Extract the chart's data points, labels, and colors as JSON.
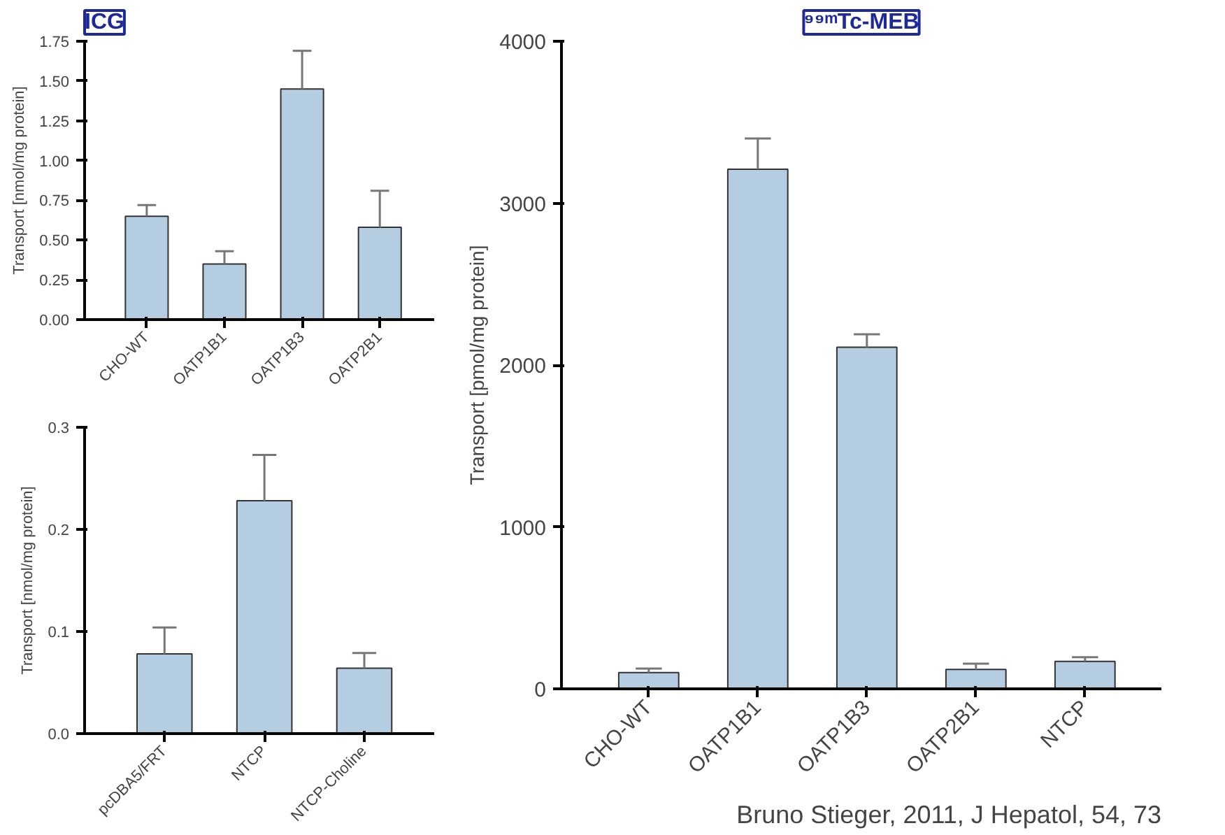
{
  "chart_data": [
    {
      "type": "bar",
      "title": "ICG",
      "ylabel": "Transport [nmol/mg protein]",
      "categories": [
        "CHO-WT",
        "OATP1B1",
        "OATP1B3",
        "OATP2B1"
      ],
      "values": [
        0.65,
        0.35,
        1.45,
        0.58
      ],
      "errors": [
        [
          0.65,
          0.72
        ],
        [
          0.35,
          0.43
        ],
        [
          1.45,
          1.69
        ],
        [
          0.58,
          0.81
        ]
      ],
      "color": "#b4cde0",
      "ylim": [
        0,
        1.75
      ],
      "yticks": [
        {
          "value": 0,
          "label": "0.00"
        },
        {
          "value": 0.25,
          "label": "0.25"
        },
        {
          "value": 0.5,
          "label": "0.50"
        },
        {
          "value": 0.75,
          "label": "0.75"
        },
        {
          "value": 1,
          "label": "1.00"
        },
        {
          "value": 1.25,
          "label": "1.25"
        },
        {
          "value": 1.5,
          "label": "1.50"
        },
        {
          "value": 1.75,
          "label": "1.75"
        }
      ],
      "grid": false
    },
    {
      "type": "bar",
      "ylabel": "Transport [nmol/mg protein]",
      "categories": [
        "pcDBA5/FRT",
        "NTCP",
        "NTCP-Choline"
      ],
      "values": [
        0.078,
        0.228,
        0.064
      ],
      "errors": [
        [
          0.078,
          0.104
        ],
        [
          0.228,
          0.273
        ],
        [
          0.064,
          0.079
        ]
      ],
      "color": "#b4cde0",
      "ylim": [
        0,
        0.3
      ],
      "yticks": [
        {
          "value": 0,
          "label": "0.0"
        },
        0.1,
        0.2,
        0.3
      ],
      "grid": false
    },
    {
      "type": "bar",
      "title": "⁹⁹ᵐTc-MEB",
      "ylabel": "Transport [pmol/mg protein]",
      "categories": [
        "CHO-WT",
        "OATP1B1",
        "OATP1B3",
        "OATP2B1",
        "NTCP"
      ],
      "values": [
        100,
        3210,
        2110,
        120,
        170
      ],
      "errors": [
        [
          100,
          125
        ],
        [
          3210,
          3400
        ],
        [
          2110,
          2190
        ],
        [
          120,
          155
        ],
        [
          170,
          195
        ]
      ],
      "color": "#b4cde0",
      "ylim": [
        0,
        4000
      ],
      "yticks": [
        0,
        1000,
        2000,
        3000,
        4000
      ],
      "grid": false,
      "annotations": [
        "Bruno Stieger, 2011, J Hepatol, 54, 73"
      ]
    }
  ]
}
